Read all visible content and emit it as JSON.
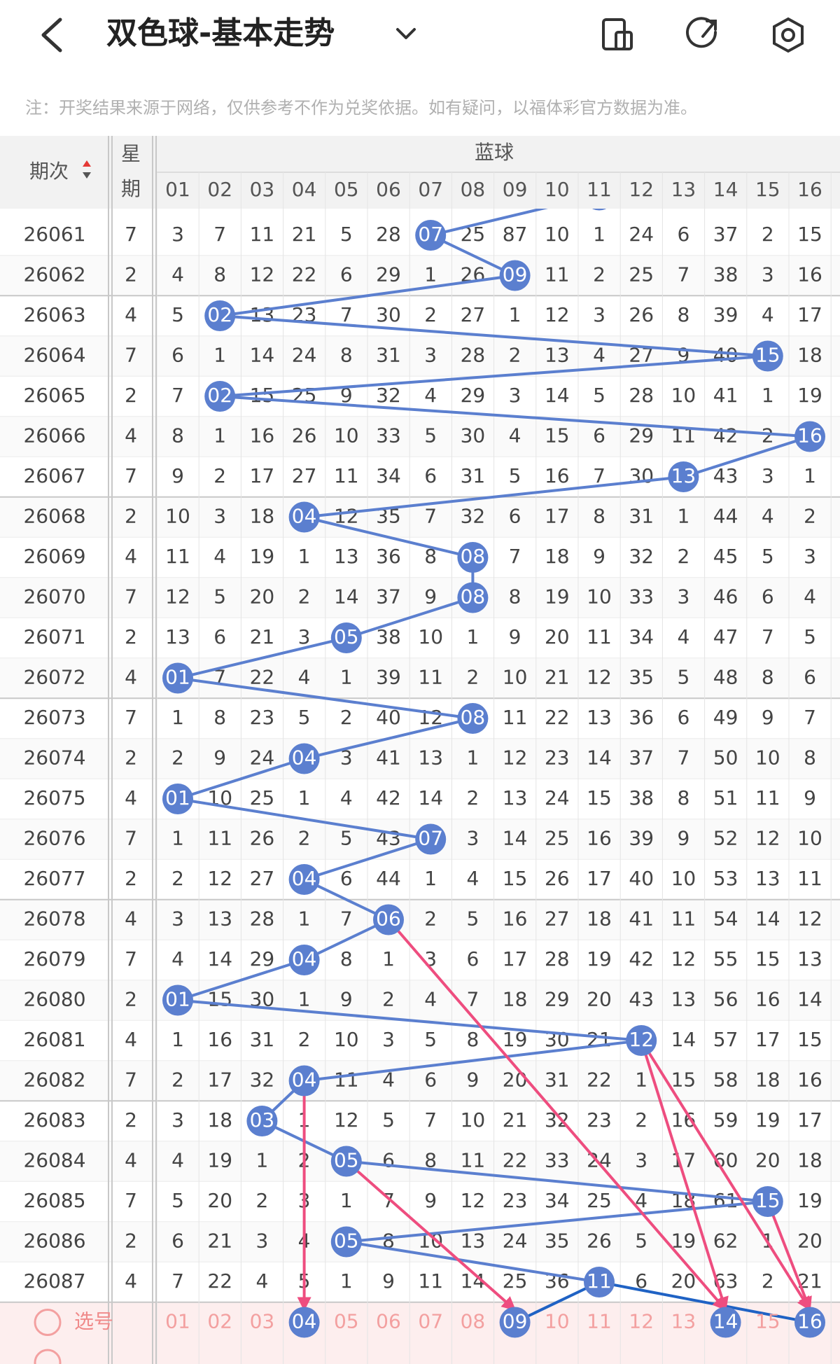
{
  "header": {
    "title": "双色球-基本走势"
  },
  "note": "注：开奖结果来源于网络，仅供参考不作为兑奖依据。如有疑问，以福体彩官方数据为准。",
  "table": {
    "period_label": "期次",
    "weekday_label_lines": [
      "星",
      "期"
    ],
    "group_label": "蓝球",
    "columns": [
      "01",
      "02",
      "03",
      "04",
      "05",
      "06",
      "07",
      "08",
      "09",
      "10",
      "11",
      "12",
      "13",
      "14",
      "15",
      "16"
    ],
    "rows": [
      {
        "period": "26061",
        "weekday": "7",
        "blue": "07",
        "cells": [
          "3",
          "7",
          "11",
          "21",
          "5",
          "28",
          "07",
          "25",
          "87",
          "10",
          "1",
          "24",
          "6",
          "37",
          "2",
          "15"
        ]
      },
      {
        "period": "26062",
        "weekday": "2",
        "blue": "09",
        "cells": [
          "4",
          "8",
          "12",
          "22",
          "6",
          "29",
          "1",
          "26",
          "09",
          "11",
          "2",
          "25",
          "7",
          "38",
          "3",
          "16"
        ]
      },
      {
        "period": "26063",
        "weekday": "4",
        "blue": "02",
        "cells": [
          "5",
          "02",
          "13",
          "23",
          "7",
          "30",
          "2",
          "27",
          "1",
          "12",
          "3",
          "26",
          "8",
          "39",
          "4",
          "17"
        ]
      },
      {
        "period": "26064",
        "weekday": "7",
        "blue": "15",
        "cells": [
          "6",
          "1",
          "14",
          "24",
          "8",
          "31",
          "3",
          "28",
          "2",
          "13",
          "4",
          "27",
          "9",
          "40",
          "15",
          "18"
        ]
      },
      {
        "period": "26065",
        "weekday": "2",
        "blue": "02",
        "cells": [
          "7",
          "02",
          "15",
          "25",
          "9",
          "32",
          "4",
          "29",
          "3",
          "14",
          "5",
          "28",
          "10",
          "41",
          "1",
          "19"
        ]
      },
      {
        "period": "26066",
        "weekday": "4",
        "blue": "16",
        "cells": [
          "8",
          "1",
          "16",
          "26",
          "10",
          "33",
          "5",
          "30",
          "4",
          "15",
          "6",
          "29",
          "11",
          "42",
          "2",
          "16"
        ]
      },
      {
        "period": "26067",
        "weekday": "7",
        "blue": "13",
        "cells": [
          "9",
          "2",
          "17",
          "27",
          "11",
          "34",
          "6",
          "31",
          "5",
          "16",
          "7",
          "30",
          "13",
          "43",
          "3",
          "1"
        ]
      },
      {
        "period": "26068",
        "weekday": "2",
        "blue": "04",
        "cells": [
          "10",
          "3",
          "18",
          "04",
          "12",
          "35",
          "7",
          "32",
          "6",
          "17",
          "8",
          "31",
          "1",
          "44",
          "4",
          "2"
        ]
      },
      {
        "period": "26069",
        "weekday": "4",
        "blue": "08",
        "cells": [
          "11",
          "4",
          "19",
          "1",
          "13",
          "36",
          "8",
          "08",
          "7",
          "18",
          "9",
          "32",
          "2",
          "45",
          "5",
          "3"
        ]
      },
      {
        "period": "26070",
        "weekday": "7",
        "blue": "08",
        "cells": [
          "12",
          "5",
          "20",
          "2",
          "14",
          "37",
          "9",
          "08",
          "8",
          "19",
          "10",
          "33",
          "3",
          "46",
          "6",
          "4"
        ]
      },
      {
        "period": "26071",
        "weekday": "2",
        "blue": "05",
        "cells": [
          "13",
          "6",
          "21",
          "3",
          "05",
          "38",
          "10",
          "1",
          "9",
          "20",
          "11",
          "34",
          "4",
          "47",
          "7",
          "5"
        ]
      },
      {
        "period": "26072",
        "weekday": "4",
        "blue": "01",
        "cells": [
          "01",
          "7",
          "22",
          "4",
          "1",
          "39",
          "11",
          "2",
          "10",
          "21",
          "12",
          "35",
          "5",
          "48",
          "8",
          "6"
        ]
      },
      {
        "period": "26073",
        "weekday": "7",
        "blue": "08",
        "cells": [
          "1",
          "8",
          "23",
          "5",
          "2",
          "40",
          "12",
          "08",
          "11",
          "22",
          "13",
          "36",
          "6",
          "49",
          "9",
          "7"
        ]
      },
      {
        "period": "26074",
        "weekday": "2",
        "blue": "04",
        "cells": [
          "2",
          "9",
          "24",
          "04",
          "3",
          "41",
          "13",
          "1",
          "12",
          "23",
          "14",
          "37",
          "7",
          "50",
          "10",
          "8"
        ]
      },
      {
        "period": "26075",
        "weekday": "4",
        "blue": "01",
        "cells": [
          "01",
          "10",
          "25",
          "1",
          "4",
          "42",
          "14",
          "2",
          "13",
          "24",
          "15",
          "38",
          "8",
          "51",
          "11",
          "9"
        ]
      },
      {
        "period": "26076",
        "weekday": "7",
        "blue": "07",
        "cells": [
          "1",
          "11",
          "26",
          "2",
          "5",
          "43",
          "07",
          "3",
          "14",
          "25",
          "16",
          "39",
          "9",
          "52",
          "12",
          "10"
        ]
      },
      {
        "period": "26077",
        "weekday": "2",
        "blue": "04",
        "cells": [
          "2",
          "12",
          "27",
          "04",
          "6",
          "44",
          "1",
          "4",
          "15",
          "26",
          "17",
          "40",
          "10",
          "53",
          "13",
          "11"
        ]
      },
      {
        "period": "26078",
        "weekday": "4",
        "blue": "06",
        "cells": [
          "3",
          "13",
          "28",
          "1",
          "7",
          "06",
          "2",
          "5",
          "16",
          "27",
          "18",
          "41",
          "11",
          "54",
          "14",
          "12"
        ]
      },
      {
        "period": "26079",
        "weekday": "7",
        "blue": "04",
        "cells": [
          "4",
          "14",
          "29",
          "04",
          "8",
          "1",
          "3",
          "6",
          "17",
          "28",
          "19",
          "42",
          "12",
          "55",
          "15",
          "13"
        ]
      },
      {
        "period": "26080",
        "weekday": "2",
        "blue": "01",
        "cells": [
          "01",
          "15",
          "30",
          "1",
          "9",
          "2",
          "4",
          "7",
          "18",
          "29",
          "20",
          "43",
          "13",
          "56",
          "16",
          "14"
        ]
      },
      {
        "period": "26081",
        "weekday": "4",
        "blue": "12",
        "cells": [
          "1",
          "16",
          "31",
          "2",
          "10",
          "3",
          "5",
          "8",
          "19",
          "30",
          "21",
          "12",
          "14",
          "57",
          "17",
          "15"
        ]
      },
      {
        "period": "26082",
        "weekday": "7",
        "blue": "04",
        "cells": [
          "2",
          "17",
          "32",
          "04",
          "11",
          "4",
          "6",
          "9",
          "20",
          "31",
          "22",
          "1",
          "15",
          "58",
          "18",
          "16"
        ]
      },
      {
        "period": "26083",
        "weekday": "2",
        "blue": "03",
        "cells": [
          "3",
          "18",
          "03",
          "1",
          "12",
          "5",
          "7",
          "10",
          "21",
          "32",
          "23",
          "2",
          "16",
          "59",
          "19",
          "17"
        ]
      },
      {
        "period": "26084",
        "weekday": "4",
        "blue": "05",
        "cells": [
          "4",
          "19",
          "1",
          "2",
          "05",
          "6",
          "8",
          "11",
          "22",
          "33",
          "24",
          "3",
          "17",
          "60",
          "20",
          "18"
        ]
      },
      {
        "period": "26085",
        "weekday": "7",
        "blue": "15",
        "cells": [
          "5",
          "20",
          "2",
          "3",
          "1",
          "7",
          "9",
          "12",
          "23",
          "34",
          "25",
          "4",
          "18",
          "61",
          "15",
          "19"
        ]
      },
      {
        "period": "26086",
        "weekday": "2",
        "blue": "05",
        "cells": [
          "6",
          "21",
          "3",
          "4",
          "05",
          "8",
          "10",
          "13",
          "24",
          "35",
          "26",
          "5",
          "19",
          "62",
          "1",
          "20"
        ]
      },
      {
        "period": "26087",
        "weekday": "4",
        "blue": "11",
        "cells": [
          "7",
          "22",
          "4",
          "5",
          "1",
          "9",
          "11",
          "14",
          "25",
          "36",
          "11",
          "6",
          "20",
          "63",
          "2",
          "21"
        ]
      }
    ],
    "pick": {
      "label": "选号",
      "numbers": [
        "01",
        "02",
        "03",
        "04",
        "05",
        "06",
        "07",
        "08",
        "09",
        "10",
        "11",
        "12",
        "13",
        "14",
        "15",
        "16"
      ],
      "selected": [
        "04",
        "09",
        "14",
        "16"
      ]
    }
  }
}
